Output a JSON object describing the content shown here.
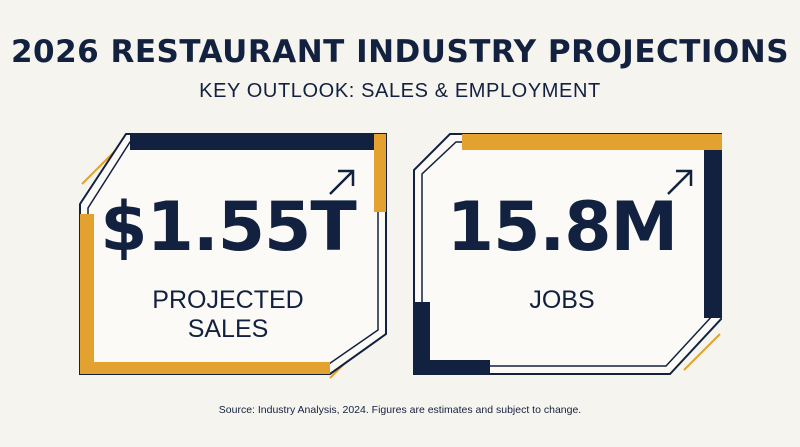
{
  "title": "2026 RESTAURANT INDUSTRY PROJECTIONS",
  "subtitle": "KEY OUTLOOK: SALES & EMPLOYMENT",
  "cards": [
    {
      "value": "$1.55T",
      "label": "PROJECTED\nSALES",
      "icon": "arrow-up-right-icon"
    },
    {
      "value": "15.8M",
      "label": "JOBS",
      "icon": "arrow-up-right-icon"
    }
  ],
  "source": "Source: Industry Analysis, 2024. Figures are estimates and subject to change.",
  "colors": {
    "navy": "#12213f",
    "gold": "#e3a230",
    "background": "#f6f4ee"
  }
}
